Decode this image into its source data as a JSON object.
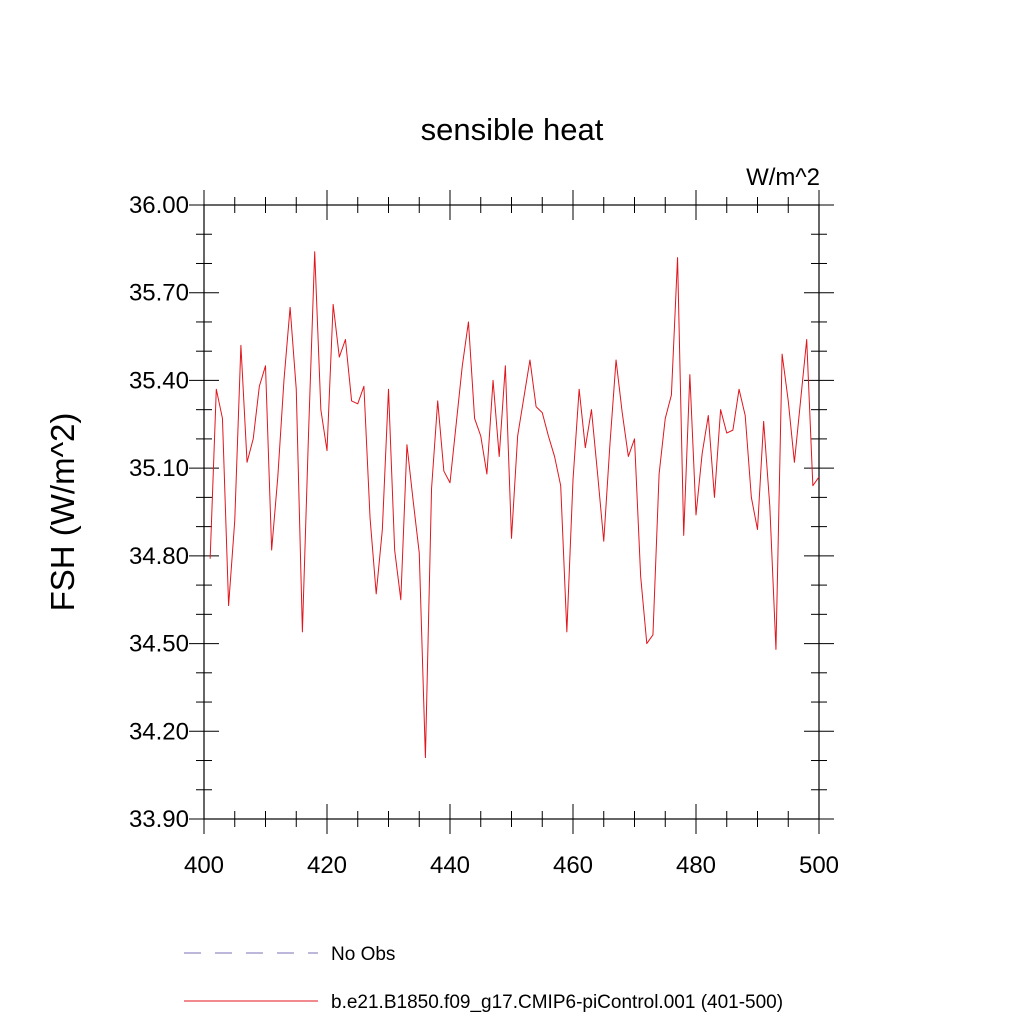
{
  "chart_data": {
    "type": "line",
    "title": "sensible heat",
    "units_label": "W/m^2",
    "ylabel": "FSH  (W/m^2)",
    "xlabel": "",
    "xlim": [
      400,
      500
    ],
    "ylim": [
      33.9,
      36.0
    ],
    "x_ticks": [
      400,
      420,
      440,
      460,
      480,
      500
    ],
    "x_tick_labels": [
      "400",
      "420",
      "440",
      "460",
      "480",
      "500"
    ],
    "y_ticks": [
      33.9,
      34.2,
      34.5,
      34.8,
      35.1,
      35.4,
      35.7,
      36.0
    ],
    "y_tick_labels": [
      "33.90",
      "34.20",
      "34.50",
      "34.80",
      "35.10",
      "35.40",
      "35.70",
      "36.00"
    ],
    "grid": false,
    "legend_position": "bottom",
    "legend": [
      {
        "label": "No Obs",
        "color": "#7e6fb8",
        "style": "dashed"
      },
      {
        "label": "b.e21.B1850.f09_g17.CMIP6-piControl.001 (401-500)",
        "color": "#e0161d",
        "style": "solid"
      }
    ],
    "series": [
      {
        "name": "b.e21.B1850.f09_g17.CMIP6-piControl.001 (401-500)",
        "color": "#e0161d",
        "x": [
          401,
          402,
          403,
          404,
          405,
          406,
          407,
          408,
          409,
          410,
          411,
          412,
          413,
          414,
          415,
          416,
          417,
          418,
          419,
          420,
          421,
          422,
          423,
          424,
          425,
          426,
          427,
          428,
          429,
          430,
          431,
          432,
          433,
          434,
          435,
          436,
          437,
          438,
          439,
          440,
          441,
          442,
          443,
          444,
          445,
          446,
          447,
          448,
          449,
          450,
          451,
          452,
          453,
          454,
          455,
          456,
          457,
          458,
          459,
          460,
          461,
          462,
          463,
          464,
          465,
          466,
          467,
          468,
          469,
          470,
          471,
          472,
          473,
          474,
          475,
          476,
          477,
          478,
          479,
          480,
          481,
          482,
          483,
          484,
          485,
          486,
          487,
          488,
          489,
          490,
          491,
          492,
          493,
          494,
          495,
          496,
          497,
          498,
          499,
          500
        ],
        "y": [
          34.79,
          35.37,
          35.27,
          34.63,
          34.92,
          35.52,
          35.12,
          35.2,
          35.38,
          35.45,
          34.82,
          35.07,
          35.4,
          35.65,
          35.37,
          34.54,
          35.22,
          35.84,
          35.3,
          35.16,
          35.66,
          35.48,
          35.54,
          35.33,
          35.32,
          35.38,
          34.93,
          34.67,
          34.89,
          35.37,
          34.82,
          34.65,
          35.18,
          34.99,
          34.81,
          34.11,
          35.03,
          35.33,
          35.09,
          35.05,
          35.25,
          35.45,
          35.6,
          35.27,
          35.21,
          35.08,
          35.4,
          35.14,
          35.45,
          34.86,
          35.21,
          35.34,
          35.47,
          35.31,
          35.29,
          35.21,
          35.14,
          35.04,
          34.54,
          35.06,
          35.37,
          35.17,
          35.3,
          35.08,
          34.85,
          35.18,
          35.47,
          35.29,
          35.14,
          35.2,
          34.73,
          34.5,
          34.53,
          35.08,
          35.27,
          35.35,
          35.82,
          34.87,
          35.42,
          34.94,
          35.15,
          35.28,
          35.0,
          35.3,
          35.22,
          35.23,
          35.37,
          35.28,
          35.0,
          34.89,
          35.26,
          34.97,
          34.48,
          35.49,
          35.33,
          35.12,
          35.33,
          35.54,
          35.04,
          35.07
        ]
      }
    ]
  }
}
